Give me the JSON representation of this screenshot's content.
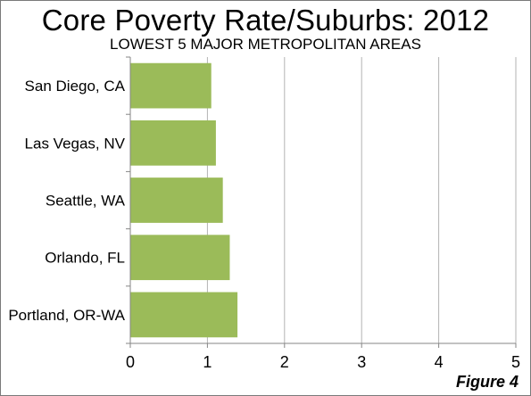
{
  "chart_data": {
    "type": "bar",
    "orientation": "horizontal",
    "title": "Core Poverty Rate/Suburbs: 2012",
    "subtitle": "LOWEST 5 MAJOR METROPOLITAN AREAS",
    "categories": [
      "San Diego, CA",
      "Las Vegas, NV",
      "Seattle, WA",
      "Orlando, FL",
      "Portland, OR-WA"
    ],
    "values": [
      1.05,
      1.11,
      1.2,
      1.29,
      1.39
    ],
    "xlim": [
      0,
      5
    ],
    "xticks": [
      "0",
      "1",
      "2",
      "3",
      "4",
      "5"
    ],
    "grid": "vertical",
    "legend": "none",
    "bar_color": "#9bbb59",
    "grid_color": "#b3b3b3",
    "axis_color": "#868686"
  },
  "figure_label": "Figure 4"
}
